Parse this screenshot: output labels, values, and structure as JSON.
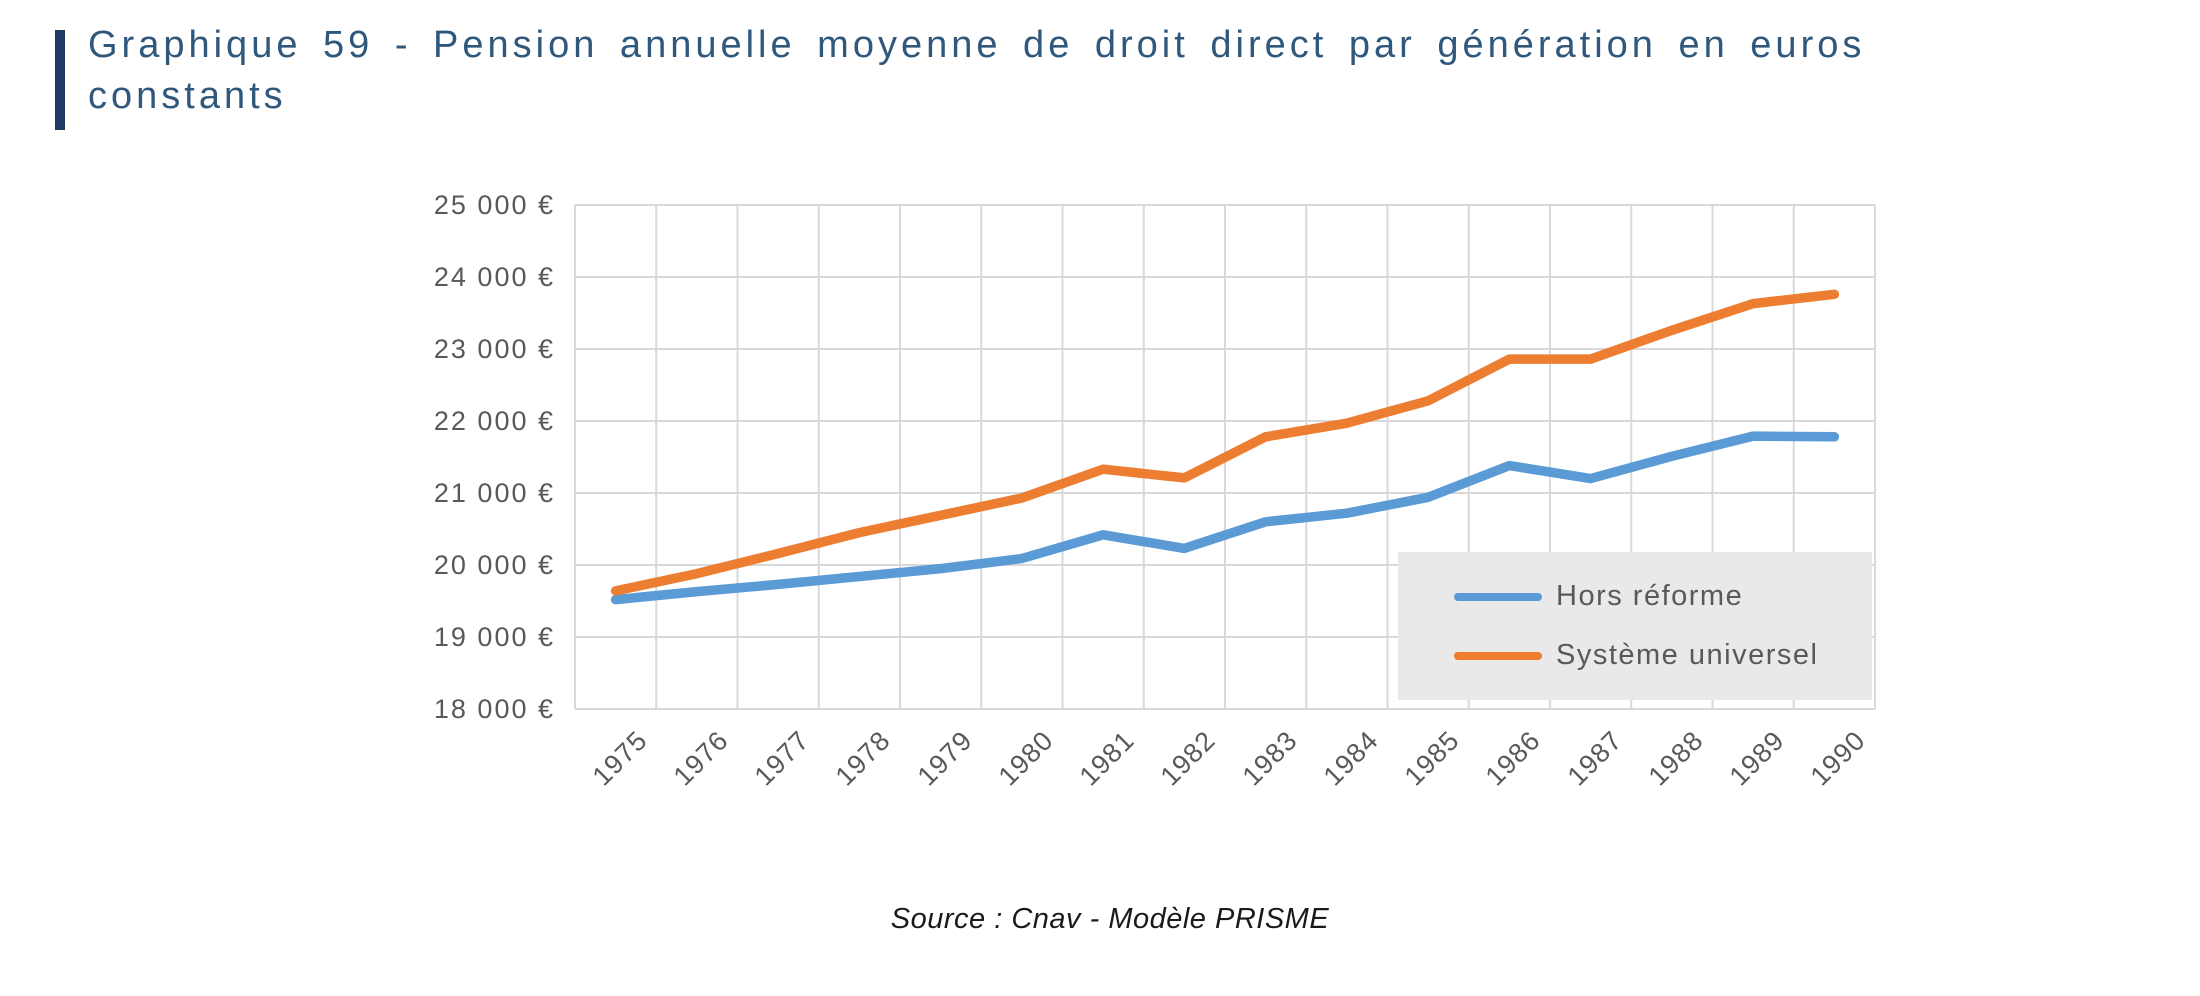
{
  "page": {
    "title": "Graphique 59 - Pension annuelle moyenne de droit direct par génération en euros constants",
    "title_lines": [
      "Graphique 59 - Pension annuelle moyenne de droit direct par génération en euros",
      "constants"
    ],
    "source": "Source : Cnav - Modèle PRISME"
  },
  "colors": {
    "title_text": "#30587C",
    "accent_bar": "#1F3C64",
    "grid": "#D9D9D9",
    "axis_text": "#595959",
    "legend_bg": "#E9E9E9",
    "legend_text": "#595959"
  },
  "chart_data": {
    "type": "line",
    "title": "Pension annuelle moyenne de droit direct par génération en euros constants",
    "categories": [
      "1975",
      "1976",
      "1977",
      "1978",
      "1979",
      "1980",
      "1981",
      "1982",
      "1983",
      "1984",
      "1985",
      "1986",
      "1987",
      "1988",
      "1989",
      "1990"
    ],
    "series": [
      {
        "name": "Hors réforme",
        "color": "#5B9BD5",
        "values": [
          19520,
          19630,
          19730,
          19840,
          19950,
          20090,
          20420,
          20230,
          20600,
          20720,
          20940,
          21380,
          21200,
          21510,
          21790,
          21780
        ]
      },
      {
        "name": "Système universel",
        "color": "#ED7D31",
        "values": [
          19640,
          19880,
          20160,
          20450,
          20690,
          20930,
          21330,
          21210,
          21780,
          21970,
          22280,
          22860,
          22860,
          23260,
          23630,
          23760
        ]
      }
    ],
    "ylim": [
      18000,
      25000
    ],
    "ytick_step": 1000,
    "ytick_labels": [
      "25 000 €",
      "24 000 €",
      "23 000 €",
      "22 000 €",
      "21 000 €",
      "20 000 €",
      "19 000 €",
      "18 000 €"
    ],
    "xlabel": "",
    "ylabel": "",
    "grid": true,
    "legend_position": "inside-bottom-right"
  }
}
